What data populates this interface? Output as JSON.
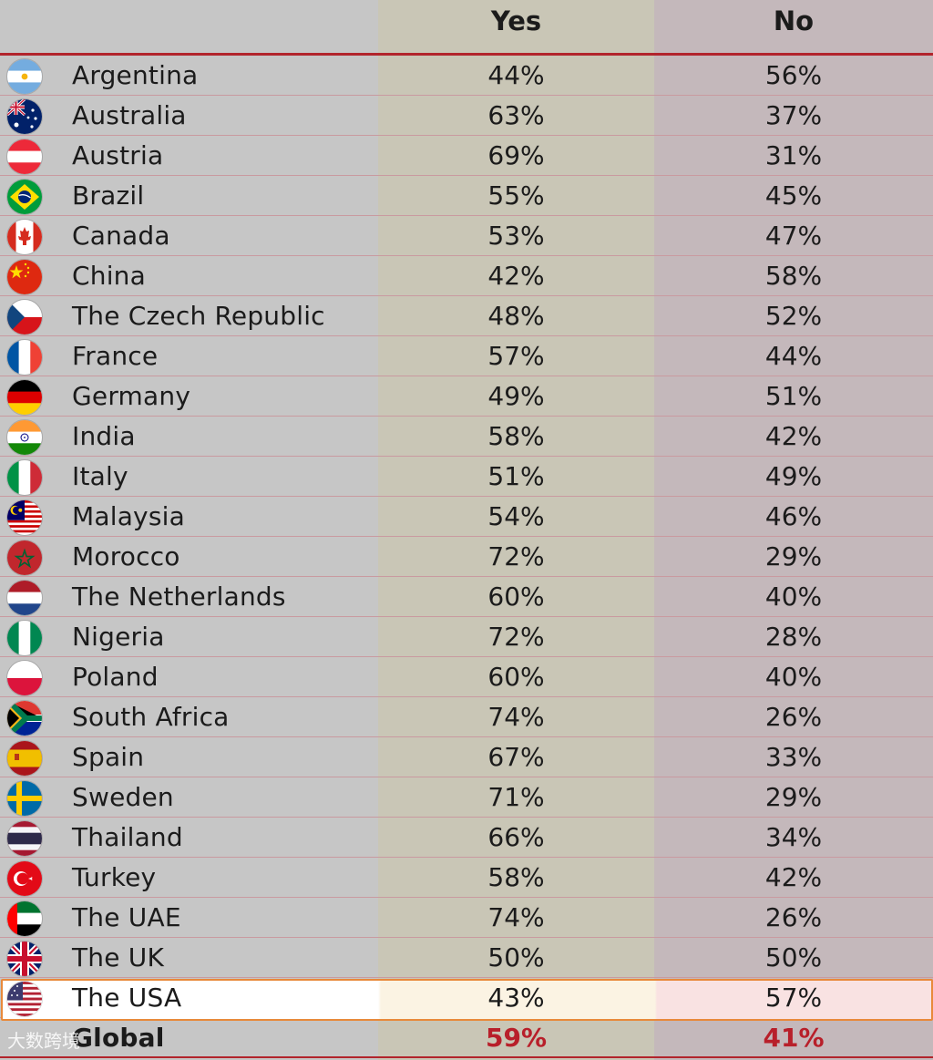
{
  "header": {
    "yes_label": "Yes",
    "no_label": "No"
  },
  "chart_data": {
    "type": "table",
    "columns": [
      "Yes",
      "No"
    ],
    "rows": [
      {
        "country": "Argentina",
        "flag": "argentina-flag-icon",
        "yes": "44%",
        "no": "56%"
      },
      {
        "country": "Australia",
        "flag": "australia-flag-icon",
        "yes": "63%",
        "no": "37%"
      },
      {
        "country": "Austria",
        "flag": "austria-flag-icon",
        "yes": "69%",
        "no": "31%"
      },
      {
        "country": "Brazil",
        "flag": "brazil-flag-icon",
        "yes": "55%",
        "no": "45%"
      },
      {
        "country": "Canada",
        "flag": "canada-flag-icon",
        "yes": "53%",
        "no": "47%"
      },
      {
        "country": "China",
        "flag": "china-flag-icon",
        "yes": "42%",
        "no": "58%"
      },
      {
        "country": "The Czech Republic",
        "flag": "czech-flag-icon",
        "yes": "48%",
        "no": "52%"
      },
      {
        "country": "France",
        "flag": "france-flag-icon",
        "yes": "57%",
        "no": "44%"
      },
      {
        "country": "Germany",
        "flag": "germany-flag-icon",
        "yes": "49%",
        "no": "51%"
      },
      {
        "country": "India",
        "flag": "india-flag-icon",
        "yes": "58%",
        "no": "42%"
      },
      {
        "country": "Italy",
        "flag": "italy-flag-icon",
        "yes": "51%",
        "no": "49%"
      },
      {
        "country": "Malaysia",
        "flag": "malaysia-flag-icon",
        "yes": "54%",
        "no": "46%"
      },
      {
        "country": "Morocco",
        "flag": "morocco-flag-icon",
        "yes": "72%",
        "no": "29%"
      },
      {
        "country": "The Netherlands",
        "flag": "netherlands-flag-icon",
        "yes": "60%",
        "no": "40%"
      },
      {
        "country": "Nigeria",
        "flag": "nigeria-flag-icon",
        "yes": "72%",
        "no": "28%"
      },
      {
        "country": "Poland",
        "flag": "poland-flag-icon",
        "yes": "60%",
        "no": "40%"
      },
      {
        "country": "South Africa",
        "flag": "south-africa-flag-icon",
        "yes": "74%",
        "no": "26%"
      },
      {
        "country": "Spain",
        "flag": "spain-flag-icon",
        "yes": "67%",
        "no": "33%"
      },
      {
        "country": "Sweden",
        "flag": "sweden-flag-icon",
        "yes": "71%",
        "no": "29%"
      },
      {
        "country": "Thailand",
        "flag": "thailand-flag-icon",
        "yes": "66%",
        "no": "34%"
      },
      {
        "country": "Turkey",
        "flag": "turkey-flag-icon",
        "yes": "58%",
        "no": "42%"
      },
      {
        "country": "The UAE",
        "flag": "uae-flag-icon",
        "yes": "74%",
        "no": "26%"
      },
      {
        "country": "The UK",
        "flag": "uk-flag-icon",
        "yes": "50%",
        "no": "50%"
      },
      {
        "country": "The USA",
        "flag": "usa-flag-icon",
        "yes": "43%",
        "no": "57%",
        "highlighted": true
      },
      {
        "country": "Global",
        "flag": "",
        "yes": "59%",
        "no": "41%",
        "summary": true
      }
    ]
  },
  "colors": {
    "accent_red": "#b2242c",
    "highlight_border": "#e8893a",
    "global_value": "#b81f2a",
    "yes_column_bg": "#c9c6b6",
    "no_column_bg": "#c4b8bb"
  },
  "watermark": "大数跨境"
}
